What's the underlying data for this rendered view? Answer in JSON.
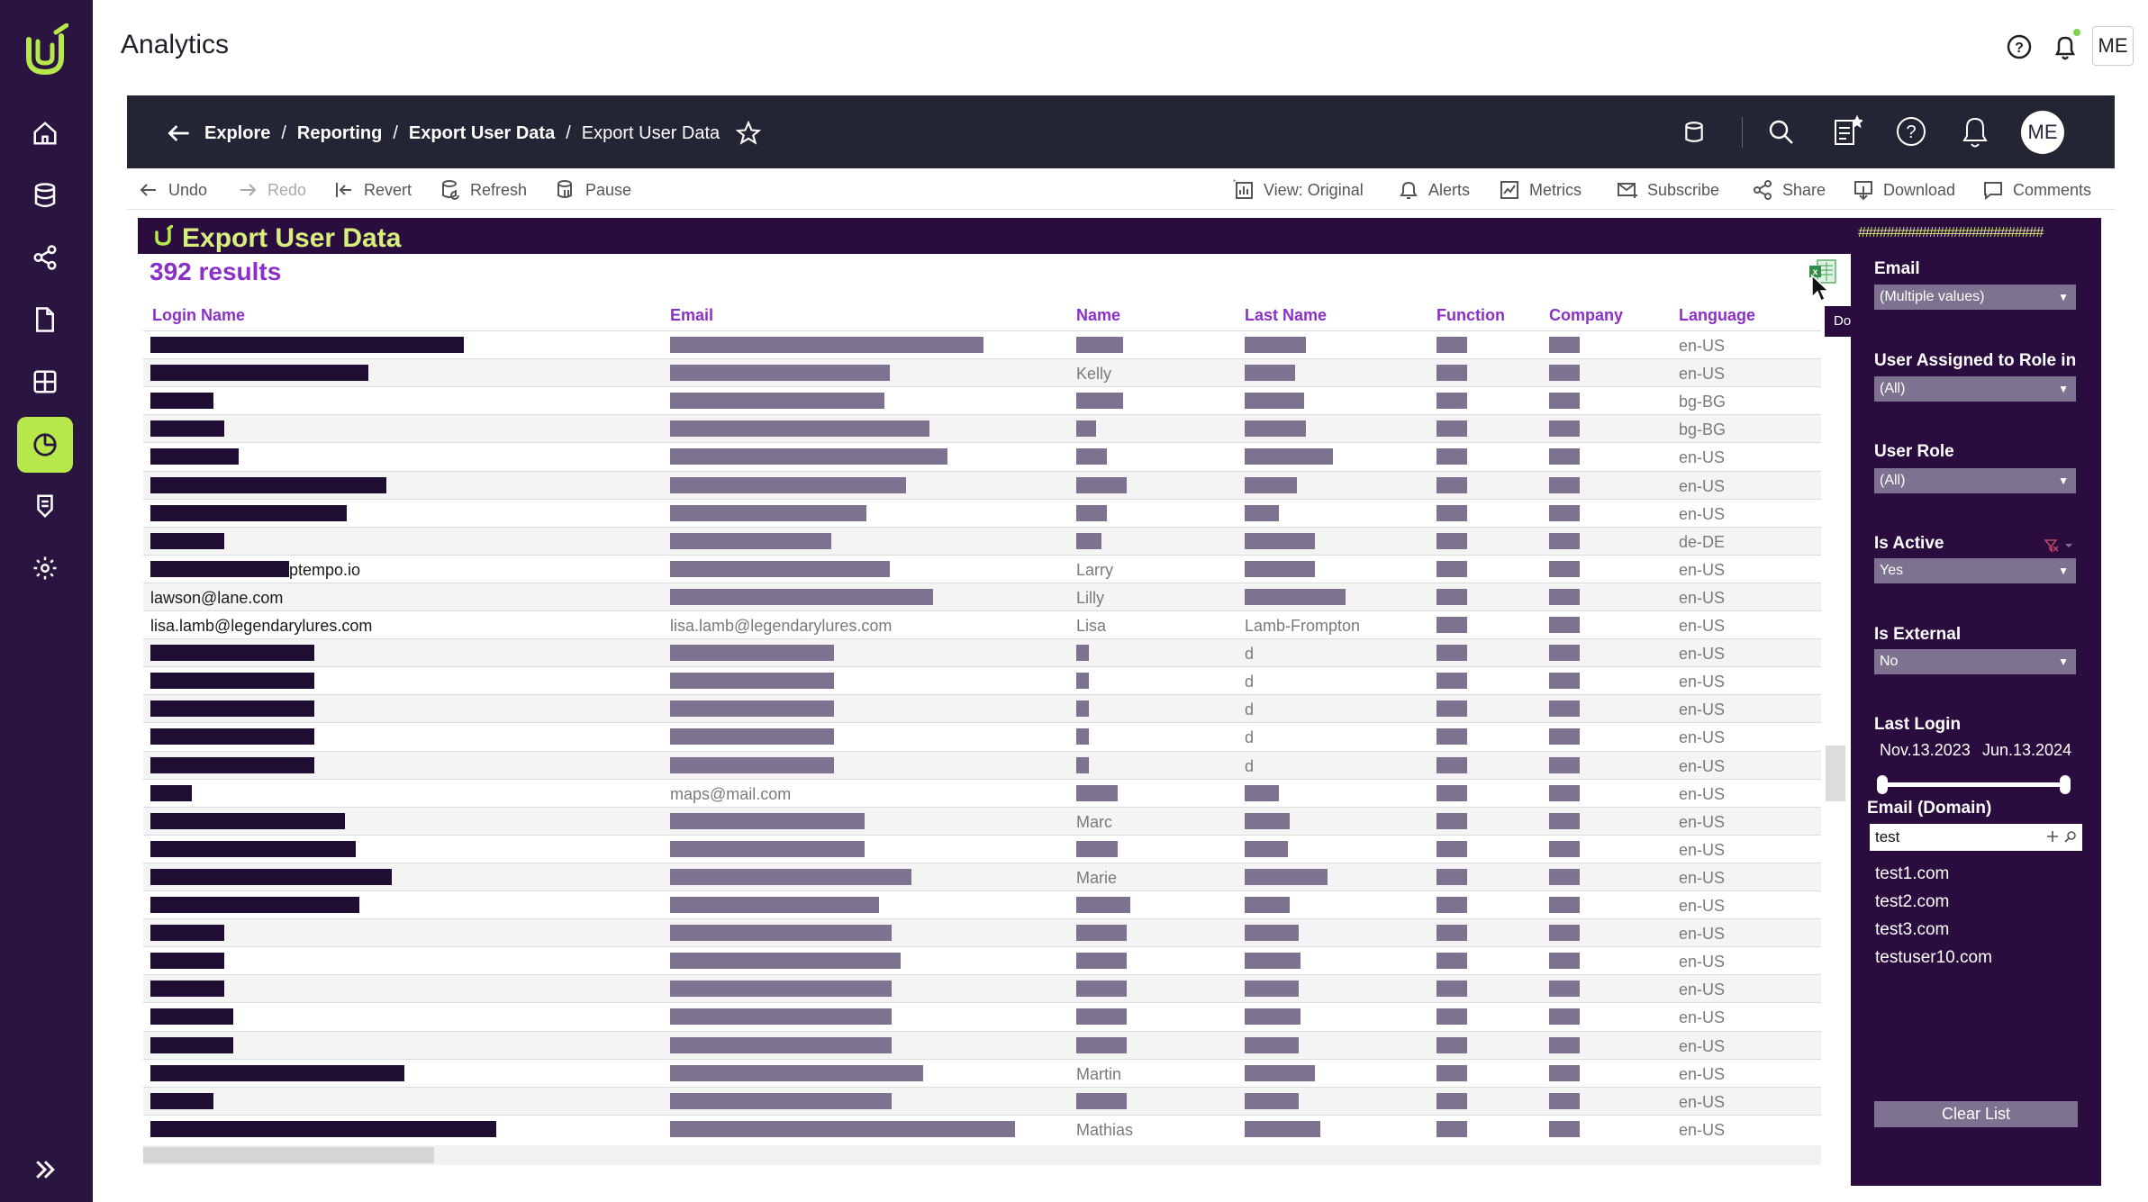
{
  "app": {
    "title": "Analytics",
    "user_initials": "ME"
  },
  "left_nav": {
    "items": [
      "home-icon",
      "database-icon",
      "share-graph-icon",
      "document-icon",
      "grid-icon",
      "analytics-clock-icon",
      "badge-icon",
      "settings-icon"
    ],
    "active": "analytics-clock-icon",
    "expand_icon": "double-chevron-right-icon"
  },
  "tableau_header": {
    "breadcrumb": [
      "Explore",
      "Reporting",
      "Export User Data",
      "Export User Data"
    ],
    "avatar": "ME"
  },
  "toolbar": {
    "undo": "Undo",
    "redo": "Redo",
    "revert": "Revert",
    "refresh": "Refresh",
    "pause": "Pause",
    "view": "View: Original",
    "alerts": "Alerts",
    "metrics": "Metrics",
    "subscribe": "Subscribe",
    "share": "Share",
    "download": "Download",
    "comments": "Comments"
  },
  "dashboard": {
    "title": "Export User Data",
    "results": "392 results",
    "tooltip": "Download as Crosstab",
    "columns": [
      "Login Name",
      "Email",
      "Name",
      "Last Name",
      "Function",
      "Company",
      "Language"
    ],
    "rows": [
      {
        "login": "",
        "email": "",
        "name": "",
        "last": "",
        "lang": "en-US"
      },
      {
        "login": "",
        "email": "",
        "name": "Kelly",
        "last": "",
        "lang": "en-US"
      },
      {
        "login": "",
        "email": "",
        "name": "",
        "last": "",
        "lang": "bg-BG"
      },
      {
        "login": "",
        "email": "",
        "name": "",
        "last": "",
        "lang": "bg-BG"
      },
      {
        "login": "",
        "email": "",
        "name": "",
        "last": "",
        "lang": "en-US"
      },
      {
        "login": "",
        "email": "",
        "name": "",
        "last": "",
        "lang": "en-US"
      },
      {
        "login": "",
        "email": "",
        "name": "",
        "last": "",
        "lang": "en-US"
      },
      {
        "login": "",
        "email": "",
        "name": "",
        "last": "",
        "lang": "de-DE"
      },
      {
        "login": "ptempo.io",
        "email": "",
        "name": "Larry",
        "last": "",
        "lang": "en-US"
      },
      {
        "login": "lawson@lane.com",
        "email": "",
        "name": "Lilly",
        "last": "",
        "lang": "en-US"
      },
      {
        "login": "lisa.lamb@legendarylures.com",
        "email": "lisa.lamb@legendarylures.com",
        "name": "Lisa",
        "last": "Lamb-Frompton",
        "lang": "en-US"
      },
      {
        "login": "",
        "email": "",
        "name": "",
        "last": "d",
        "lang": "en-US"
      },
      {
        "login": "",
        "email": "",
        "name": "",
        "last": "d",
        "lang": "en-US"
      },
      {
        "login": "",
        "email": "",
        "name": "",
        "last": "d",
        "lang": "en-US"
      },
      {
        "login": "",
        "email": "",
        "name": "",
        "last": "d",
        "lang": "en-US"
      },
      {
        "login": "",
        "email": "",
        "name": "",
        "last": "d",
        "lang": "en-US"
      },
      {
        "login": "",
        "email": "maps@mail.com",
        "name": "",
        "last": "",
        "lang": "en-US"
      },
      {
        "login": "",
        "email": "",
        "name": "Marc",
        "last": "",
        "lang": "en-US"
      },
      {
        "login": "",
        "email": "",
        "name": "",
        "last": "",
        "lang": "en-US"
      },
      {
        "login": "",
        "email": "",
        "name": "Marie",
        "last": "",
        "lang": "en-US"
      },
      {
        "login": "",
        "email": "",
        "name": "",
        "last": "",
        "lang": "en-US"
      },
      {
        "login": "",
        "email": "",
        "name": "",
        "last": "",
        "lang": "en-US"
      },
      {
        "login": "",
        "email": "",
        "name": "",
        "last": "",
        "lang": "en-US"
      },
      {
        "login": "",
        "email": "",
        "name": "",
        "last": "",
        "lang": "en-US"
      },
      {
        "login": "",
        "email": "",
        "name": "",
        "last": "",
        "lang": "en-US"
      },
      {
        "login": "",
        "email": "",
        "name": "",
        "last": "",
        "lang": "en-US"
      },
      {
        "login": "",
        "email": "",
        "name": "Martin",
        "last": "",
        "lang": "en-US"
      },
      {
        "login": "",
        "email": "",
        "name": "",
        "last": "",
        "lang": "en-US"
      },
      {
        "login": "",
        "email": "",
        "name": "Mathias",
        "last": "",
        "lang": "en-US"
      }
    ]
  },
  "filters": {
    "hashes": "##########################",
    "email": {
      "label": "Email",
      "value": "(Multiple values)"
    },
    "role_assigned": {
      "label": "User Assigned to Role in",
      "value": "(All)"
    },
    "user_role": {
      "label": "User Role",
      "value": "(All)"
    },
    "is_active": {
      "label": "Is Active",
      "value": "Yes"
    },
    "is_external": {
      "label": "Is External",
      "value": "No"
    },
    "last_login": {
      "label": "Last Login",
      "from": "Nov.13.2023",
      "to": "Jun.13.2024"
    },
    "email_domain": {
      "label": "Email (Domain)",
      "input": "test",
      "items": [
        "test1.com",
        "test2.com",
        "test3.com",
        "testuser10.com"
      ]
    },
    "clear": "Clear List"
  },
  "colors": {
    "nav_bg": "#2a1540",
    "accent_green": "#b7e84a",
    "title_bg": "#2a0d3e",
    "title_text": "#d7ef7c",
    "column_header": "#8a30c8",
    "redacted_dark": "#1f0d33",
    "redacted_muted": "#7d7390"
  }
}
